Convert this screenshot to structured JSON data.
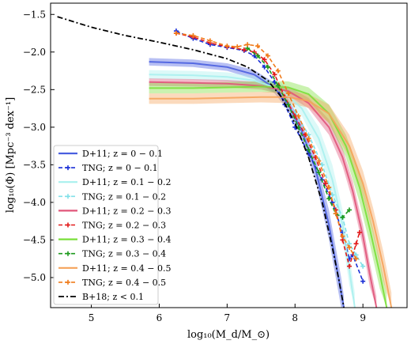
{
  "chart_data": {
    "type": "line",
    "title": "",
    "xlabel": "log₁₀(M_d/M_⊙)",
    "ylabel": "log₁₀(Φ) [Mpc⁻³ dex⁻¹]",
    "xlim": [
      4.4,
      9.65
    ],
    "ylim": [
      -5.4,
      -1.35
    ],
    "xticks": [
      5,
      6,
      7,
      8,
      9
    ],
    "xtick_labels": [
      "5",
      "6",
      "7",
      "8",
      "9"
    ],
    "yticks": [
      -1.5,
      -2.0,
      -2.5,
      -3.0,
      -3.5,
      -4.0,
      -4.5,
      -5.0
    ],
    "ytick_labels": [
      "−1.5",
      "−2.0",
      "−2.5",
      "−3.0",
      "−3.5",
      "−4.0",
      "−4.5",
      "−5.0"
    ],
    "grid": false,
    "legend_position": "bottom-left",
    "series": [
      {
        "name": "D+11; z = 0 − 0.1",
        "kind": "band",
        "color": "#4a5fe0",
        "x": [
          5.85,
          6.5,
          7.0,
          7.4,
          7.7,
          7.9,
          8.1,
          8.3,
          8.5,
          8.6,
          8.68,
          8.72
        ],
        "y": [
          -2.13,
          -2.15,
          -2.2,
          -2.3,
          -2.48,
          -2.7,
          -3.05,
          -3.55,
          -4.3,
          -4.8,
          -5.2,
          -5.4
        ],
        "y_low": [
          -2.18,
          -2.2,
          -2.25,
          -2.36,
          -2.55,
          -2.78,
          -3.15,
          -3.7,
          -4.5,
          -5.0,
          -5.4,
          -5.4
        ],
        "y_high": [
          -2.08,
          -2.1,
          -2.15,
          -2.24,
          -2.41,
          -2.62,
          -2.95,
          -3.4,
          -4.1,
          -4.6,
          -5.0,
          -5.25
        ]
      },
      {
        "name": "TNG; z = 0 − 0.1",
        "kind": "dashed-markers",
        "color": "#1a2fd6",
        "x": [
          6.25,
          6.5,
          6.75,
          7.0,
          7.25,
          7.4,
          7.55,
          7.7,
          7.85,
          8.0,
          8.2,
          8.4,
          8.55,
          8.7,
          8.8,
          8.85,
          9.0
        ],
        "y": [
          -1.72,
          -1.82,
          -1.9,
          -1.94,
          -1.98,
          -2.05,
          -2.2,
          -2.4,
          -2.7,
          -3.0,
          -3.35,
          -3.7,
          -4.0,
          -4.4,
          -4.75,
          -4.7,
          -5.05
        ]
      },
      {
        "name": "D+11; z = 0.1 − 0.2",
        "kind": "band",
        "color": "#a8f0ee",
        "x": [
          5.85,
          6.5,
          7.0,
          7.4,
          7.8,
          8.1,
          8.35,
          8.55,
          8.7,
          8.8,
          8.88
        ],
        "y": [
          -2.3,
          -2.31,
          -2.33,
          -2.38,
          -2.5,
          -2.75,
          -3.15,
          -3.7,
          -4.3,
          -4.9,
          -5.4
        ],
        "y_low": [
          -2.36,
          -2.37,
          -2.39,
          -2.44,
          -2.58,
          -2.85,
          -3.3,
          -3.9,
          -4.5,
          -5.1,
          -5.4
        ],
        "y_high": [
          -2.24,
          -2.25,
          -2.27,
          -2.32,
          -2.42,
          -2.65,
          -3.0,
          -3.5,
          -4.1,
          -4.7,
          -5.2
        ]
      },
      {
        "name": "TNG; z = 0.1 − 0.2",
        "kind": "dashed-markers",
        "color": "#80e0e8",
        "x": [
          8.0,
          8.2,
          8.4,
          8.55,
          8.7,
          8.8,
          8.9,
          9.0
        ],
        "y": [
          -2.8,
          -3.1,
          -3.5,
          -3.9,
          -4.2,
          -4.55,
          -4.7,
          -4.85
        ]
      },
      {
        "name": "D+11; z = 0.2 − 0.3",
        "kind": "band",
        "color": "#e0557a",
        "x": [
          5.85,
          6.5,
          7.0,
          7.5,
          7.9,
          8.2,
          8.5,
          8.7,
          8.85,
          9.0,
          9.1,
          9.2
        ],
        "y": [
          -2.4,
          -2.41,
          -2.42,
          -2.45,
          -2.52,
          -2.68,
          -3.0,
          -3.4,
          -3.85,
          -4.45,
          -4.95,
          -5.4
        ],
        "y_low": [
          -2.45,
          -2.46,
          -2.47,
          -2.5,
          -2.58,
          -2.75,
          -3.1,
          -3.52,
          -3.98,
          -4.6,
          -5.12,
          -5.4
        ],
        "y_high": [
          -2.35,
          -2.36,
          -2.37,
          -2.4,
          -2.46,
          -2.61,
          -2.9,
          -3.28,
          -3.72,
          -4.3,
          -4.8,
          -5.25
        ]
      },
      {
        "name": "TNG; z = 0.2 − 0.3",
        "kind": "dashed-markers",
        "color": "#e21a1a",
        "x": [
          6.25,
          6.5,
          6.75,
          7.0,
          7.25,
          7.4,
          7.55,
          7.7,
          7.85,
          8.0,
          8.15,
          8.3,
          8.45,
          8.6,
          8.7,
          8.8,
          8.9,
          8.95
        ],
        "y": [
          -1.75,
          -1.8,
          -1.88,
          -1.93,
          -1.97,
          -2.0,
          -2.1,
          -2.3,
          -2.6,
          -2.85,
          -3.1,
          -3.4,
          -3.75,
          -4.1,
          -4.5,
          -4.85,
          -4.55,
          -4.4
        ]
      },
      {
        "name": "D+11; z = 0.3 − 0.4",
        "kind": "band",
        "color": "#7adf3a",
        "x": [
          5.85,
          6.5,
          7.0,
          7.5,
          7.9,
          8.2,
          8.5,
          8.75,
          8.95,
          9.1,
          9.25,
          9.35
        ],
        "y": [
          -2.48,
          -2.48,
          -2.47,
          -2.46,
          -2.47,
          -2.56,
          -2.82,
          -3.25,
          -3.8,
          -4.35,
          -4.95,
          -5.4
        ],
        "y_low": [
          -2.55,
          -2.55,
          -2.54,
          -2.53,
          -2.55,
          -2.65,
          -2.95,
          -3.4,
          -4.0,
          -4.55,
          -5.15,
          -5.4
        ],
        "y_high": [
          -2.41,
          -2.41,
          -2.4,
          -2.39,
          -2.39,
          -2.47,
          -2.7,
          -3.1,
          -3.6,
          -4.15,
          -4.75,
          -5.2
        ]
      },
      {
        "name": "TNG; z = 0.3 − 0.4",
        "kind": "dashed-markers",
        "color": "#1d9a1d",
        "x": [
          7.3,
          7.45,
          7.6,
          7.75,
          7.9,
          8.05,
          8.2,
          8.35,
          8.5,
          8.6,
          8.7,
          8.8
        ],
        "y": [
          -1.95,
          -2.05,
          -2.2,
          -2.45,
          -2.7,
          -3.0,
          -3.3,
          -3.6,
          -3.95,
          -4.15,
          -4.2,
          -4.1
        ]
      },
      {
        "name": "D+11; z = 0.4 − 0.5",
        "kind": "band",
        "color": "#f5a35a",
        "x": [
          5.85,
          6.5,
          7.0,
          7.5,
          7.9,
          8.2,
          8.5,
          8.8,
          9.0,
          9.15,
          9.3,
          9.42
        ],
        "y": [
          -2.62,
          -2.62,
          -2.61,
          -2.6,
          -2.6,
          -2.65,
          -2.82,
          -3.25,
          -3.75,
          -4.25,
          -4.85,
          -5.4
        ],
        "y_low": [
          -2.69,
          -2.69,
          -2.68,
          -2.67,
          -2.68,
          -2.74,
          -2.94,
          -3.4,
          -3.92,
          -4.43,
          -5.05,
          -5.4
        ],
        "y_high": [
          -2.55,
          -2.55,
          -2.54,
          -2.53,
          -2.52,
          -2.56,
          -2.7,
          -3.1,
          -3.58,
          -4.07,
          -4.65,
          -5.2
        ]
      },
      {
        "name": "TNG; z = 0.4 − 0.5",
        "kind": "dashed-markers",
        "color": "#f07b1a",
        "x": [
          6.25,
          6.5,
          6.75,
          7.0,
          7.15,
          7.3,
          7.45,
          7.6,
          7.75,
          7.9,
          8.05,
          8.2,
          8.35,
          8.5,
          8.6,
          8.7,
          8.8,
          8.9
        ],
        "y": [
          -1.75,
          -1.78,
          -1.85,
          -1.92,
          -1.93,
          -1.9,
          -1.92,
          -2.05,
          -2.25,
          -2.55,
          -2.85,
          -3.15,
          -3.45,
          -3.8,
          -4.15,
          -4.45,
          -4.6,
          -4.75
        ]
      },
      {
        "name": "B+18; z < 0.1",
        "kind": "dashdot",
        "color": "#000000",
        "x": [
          4.5,
          5.0,
          5.5,
          6.0,
          6.5,
          7.0,
          7.3,
          7.6,
          7.8,
          8.0,
          8.2,
          8.4,
          8.55,
          8.65,
          8.72
        ],
        "y": [
          -1.53,
          -1.67,
          -1.78,
          -1.87,
          -1.97,
          -2.09,
          -2.2,
          -2.38,
          -2.6,
          -2.95,
          -3.4,
          -4.0,
          -4.6,
          -5.05,
          -5.4
        ]
      }
    ]
  }
}
